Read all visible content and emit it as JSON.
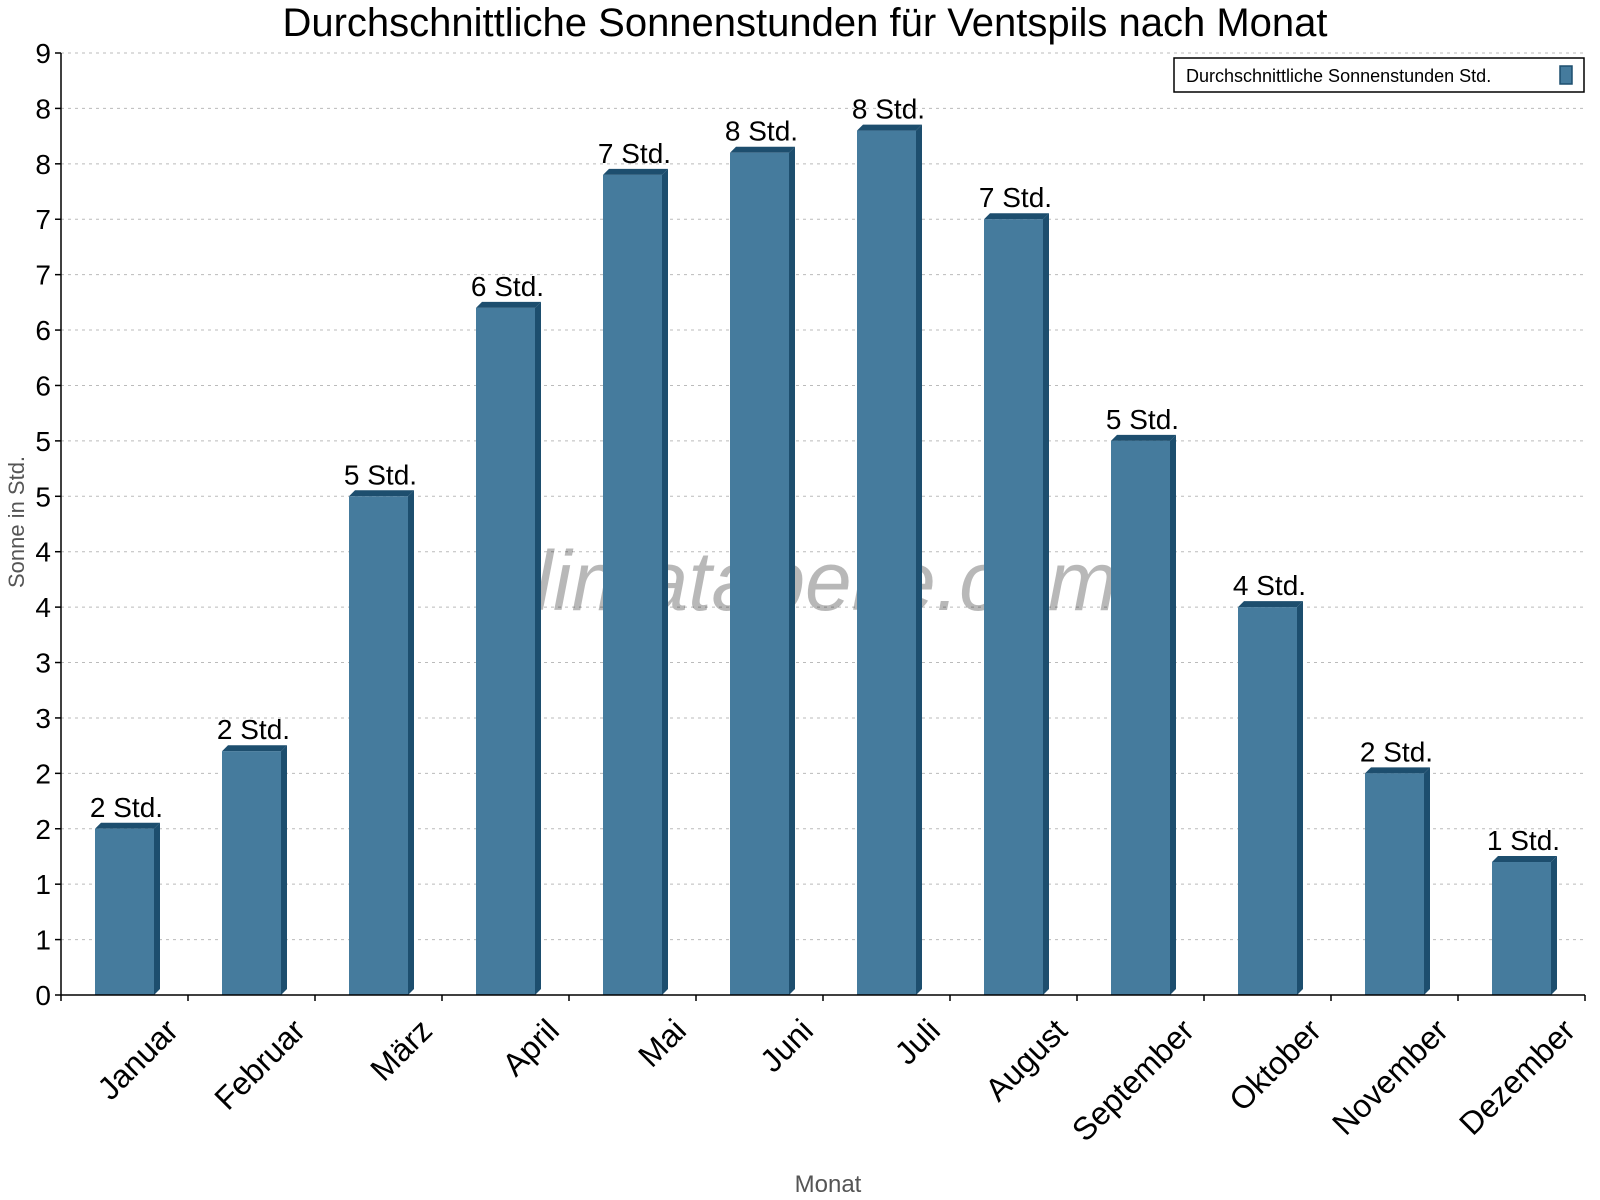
{
  "chart_data": {
    "type": "bar",
    "title": "Durchschnittliche Sonnenstunden für Ventspils nach Monat",
    "xlabel": "Monat",
    "ylabel": "Sonne in Std.",
    "categories": [
      "Januar",
      "Februar",
      "März",
      "April",
      "Mai",
      "Juni",
      "Juli",
      "August",
      "September",
      "Oktober",
      "November",
      "Dezember"
    ],
    "series": [
      {
        "name": "Durchschnittliche Sonnenstunden Std.",
        "values": [
          1.5,
          2.2,
          4.5,
          6.2,
          7.4,
          7.6,
          7.8,
          7.0,
          5.0,
          3.5,
          2.0,
          1.2
        ],
        "labels": [
          "2 Std.",
          "2 Std.",
          "5 Std.",
          "6 Std.",
          "7 Std.",
          "8 Std.",
          "8 Std.",
          "7 Std.",
          "5 Std.",
          "4 Std.",
          "2 Std.",
          "1 Std."
        ],
        "color": "#457b9d",
        "side_color": "#1d4e6e"
      }
    ],
    "ylim": [
      0,
      8.5
    ],
    "yticks": [
      0,
      0.5,
      1,
      1.5,
      2,
      2.5,
      3,
      3.5,
      4,
      4.5,
      5,
      5.5,
      6,
      6.5,
      7,
      7.5,
      8,
      8.5
    ],
    "ytick_labels": [
      "0",
      "1",
      "1",
      "2",
      "2",
      "3",
      "3",
      "4",
      "4",
      "5",
      "5",
      "6",
      "6",
      "7",
      "7",
      "8",
      "8",
      "9"
    ],
    "grid": true,
    "legend_position": "top-right",
    "watermark": "klimatabelle.com"
  }
}
